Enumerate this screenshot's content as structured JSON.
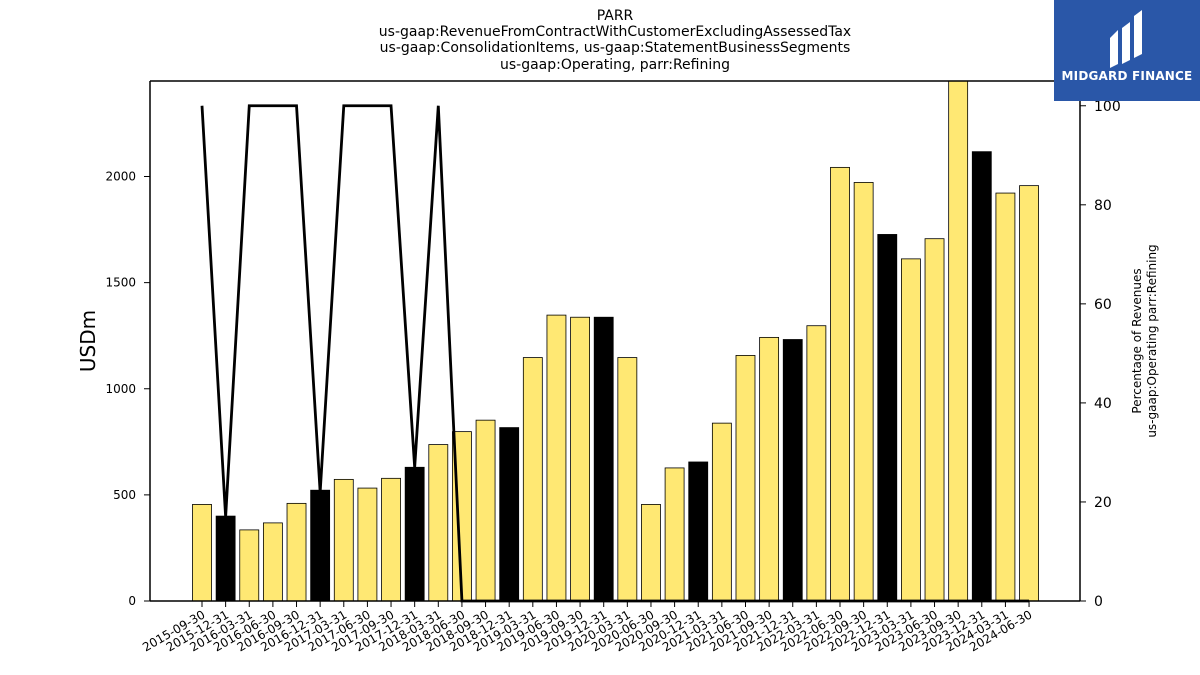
{
  "chart_data": {
    "type": "bar",
    "title_lines": [
      "PARR",
      "us-gaap:RevenueFromContractWithCustomerExcludingAssessedTax",
      "us-gaap:ConsolidationItems, us-gaap:StatementBusinessSegments",
      "us-gaap:Operating, parr:Refining"
    ],
    "ylabel": "USDm",
    "y2label_lines": [
      "Percentage of Revenues",
      "us-gaap:Operating parr:Refining"
    ],
    "ylim": [
      0,
      2450
    ],
    "y2lim": [
      0,
      105
    ],
    "yticks": [
      0,
      500,
      1000,
      1500,
      2000
    ],
    "y2ticks": [
      0,
      20,
      40,
      60,
      80,
      100
    ],
    "categories": [
      "2015-09-30",
      "2015-12-31",
      "2016-03-31",
      "2016-06-30",
      "2016-09-30",
      "2016-12-31",
      "2017-03-31",
      "2017-06-30",
      "2017-09-30",
      "2017-12-31",
      "2018-03-31",
      "2018-06-30",
      "2018-09-30",
      "2018-12-31",
      "2019-03-31",
      "2019-06-30",
      "2019-09-30",
      "2019-12-31",
      "2020-03-31",
      "2020-06-30",
      "2020-09-30",
      "2020-12-31",
      "2021-03-31",
      "2021-06-30",
      "2021-09-30",
      "2021-12-31",
      "2022-03-31",
      "2022-06-30",
      "2022-09-30",
      "2022-12-31",
      "2023-03-31",
      "2023-06-30",
      "2023-09-30",
      "2023-12-31",
      "2024-03-31",
      "2024-06-30"
    ],
    "series": [
      {
        "values": [
          455,
          400,
          335,
          368,
          460,
          522,
          573,
          532,
          578,
          630,
          737,
          798,
          852,
          817,
          1147,
          1347,
          1337,
          1337,
          1147,
          455,
          627,
          655,
          838,
          1157,
          1242,
          1232,
          1297,
          2043,
          1972,
          1727,
          1612,
          1707,
          2480,
          2117,
          1922,
          1957
        ],
        "highlight_indices": [
          1,
          5,
          9,
          13,
          17,
          21,
          25,
          29,
          33
        ]
      },
      {
        "type": "line",
        "axis": "right",
        "values": [
          100,
          17,
          100,
          100,
          100,
          22,
          100,
          100,
          100,
          27,
          100,
          0,
          0,
          0,
          0,
          0,
          0,
          0,
          0,
          0,
          0,
          0,
          0,
          0,
          0,
          0,
          0,
          0,
          0,
          0,
          0,
          0,
          0,
          0,
          0,
          0
        ]
      }
    ],
    "colors": {
      "bar": "#ffe873",
      "highlight_bar": "#000000",
      "line": "#000000"
    }
  },
  "logo": {
    "text": "MIDGARD FINANCE",
    "background": "#2a57a8"
  }
}
